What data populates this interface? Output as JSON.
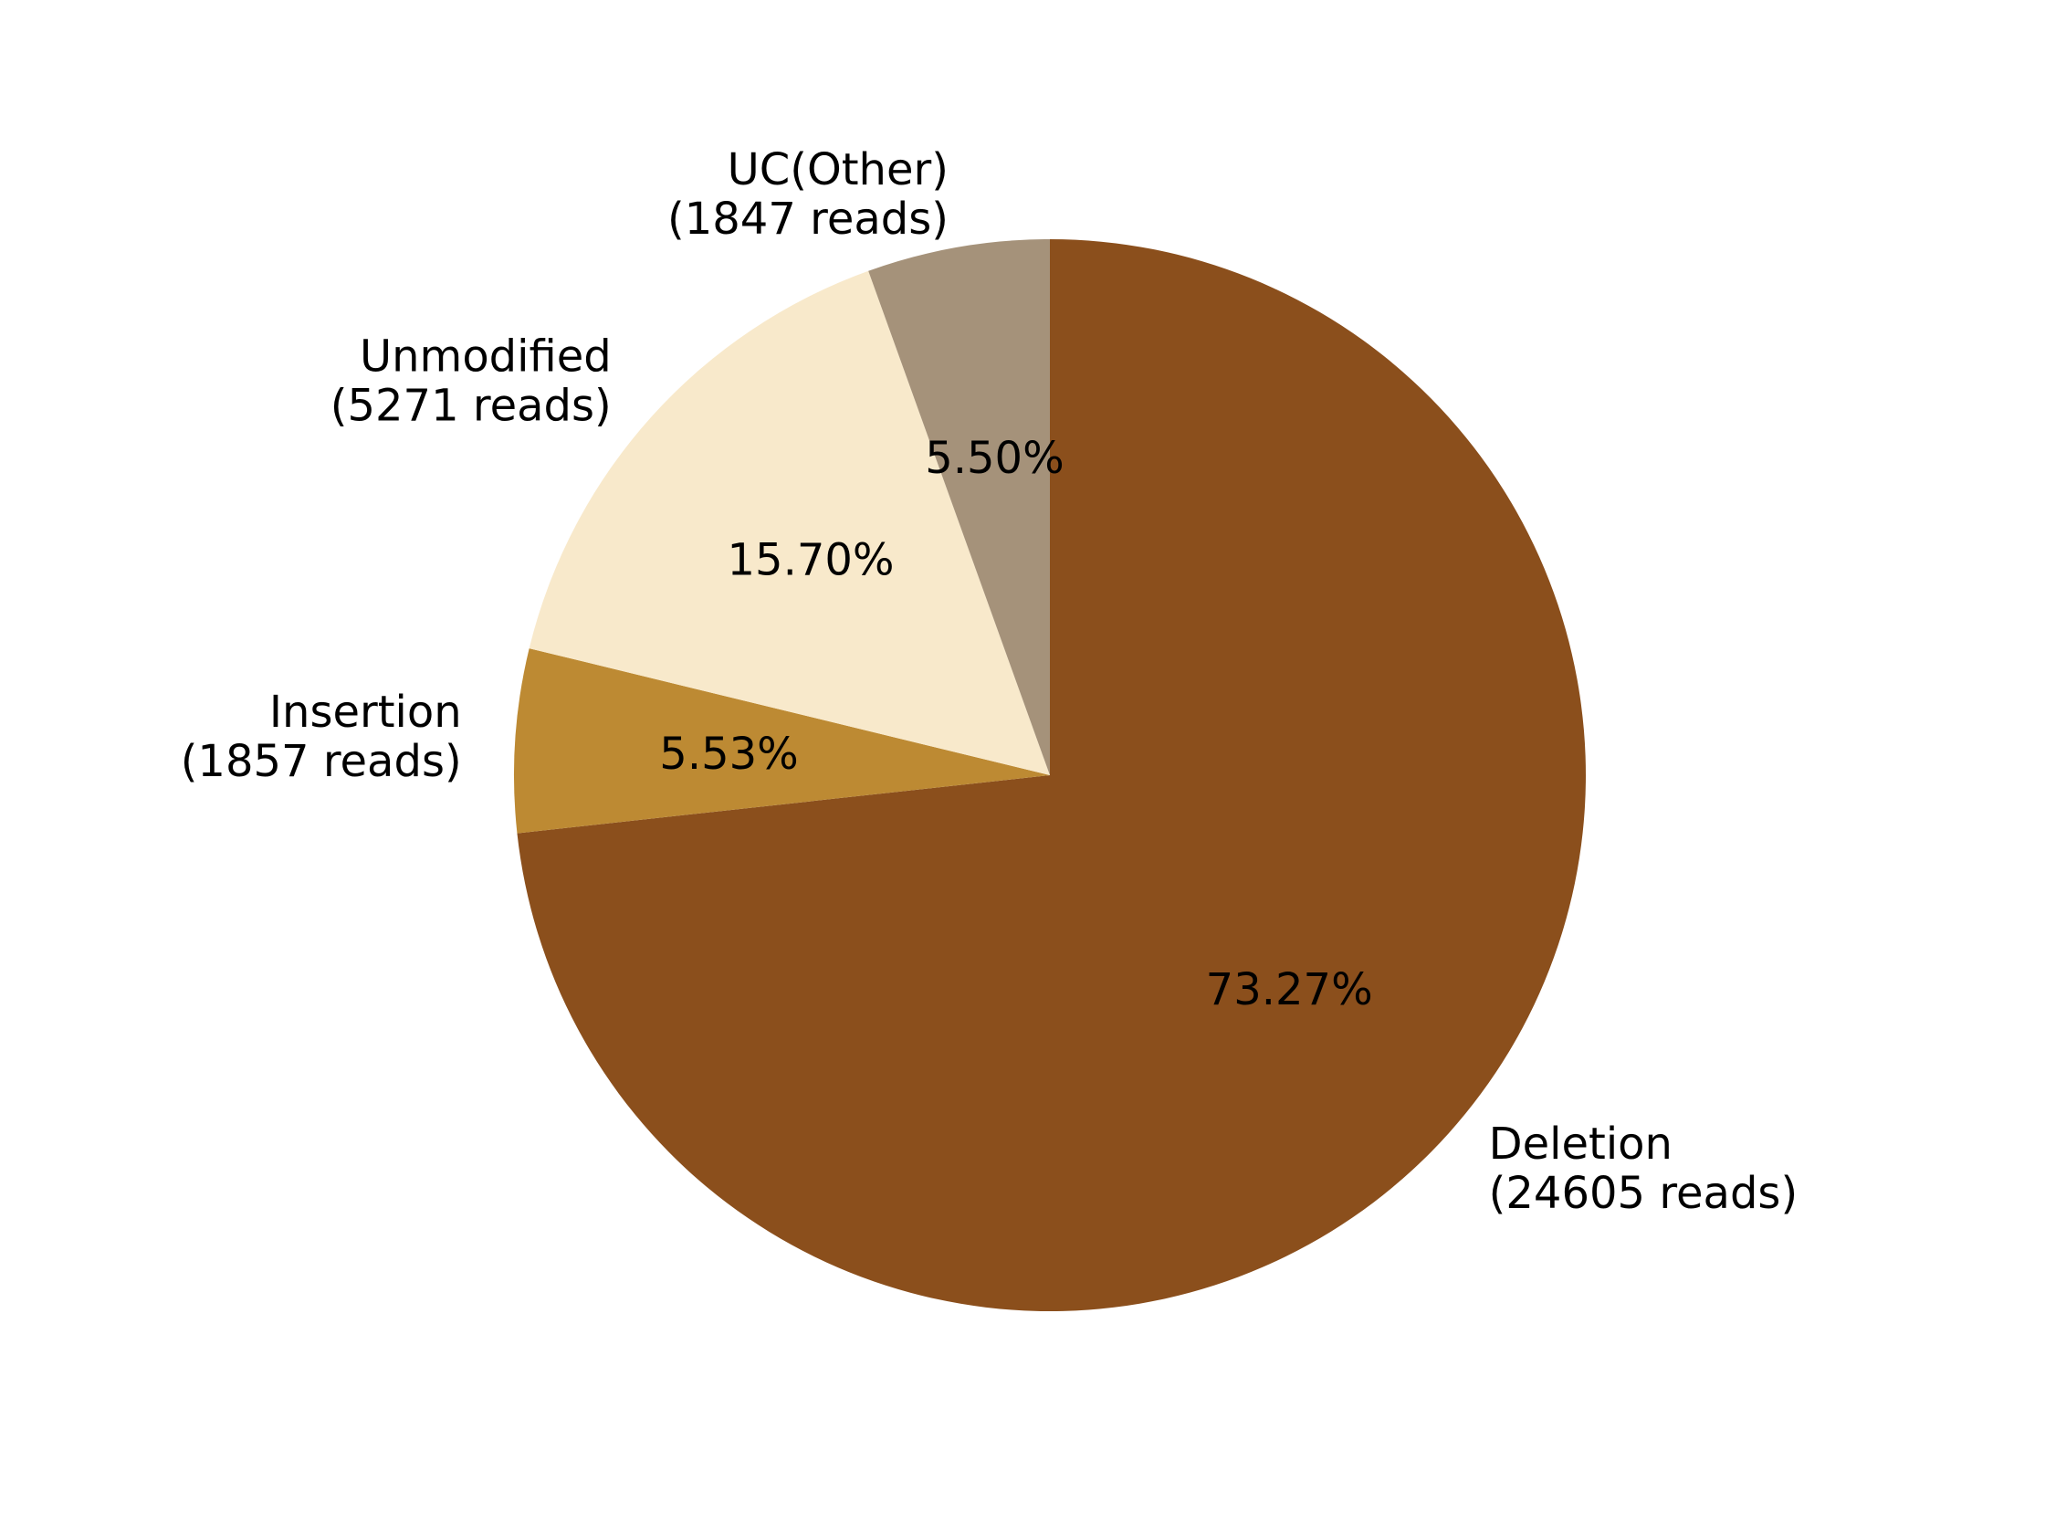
{
  "chart_data": {
    "type": "pie",
    "slices": [
      {
        "label": "Deletion",
        "reads_text": "(24605 reads)",
        "value": 24605,
        "percent_text": "73.27%",
        "color": "#8b4f1c"
      },
      {
        "label": "Insertion",
        "reads_text": "(1857 reads)",
        "value": 1857,
        "percent_text": "5.53%",
        "color": "#bd8a33"
      },
      {
        "label": "Unmodified",
        "reads_text": "(5271 reads)",
        "value": 5271,
        "percent_text": "15.70%",
        "color": "#f8e9cb"
      },
      {
        "label": "UC(Other)",
        "reads_text": "(1847 reads)",
        "value": 1847,
        "percent_text": "5.50%",
        "color": "#a5927a"
      }
    ],
    "start_angle_deg": 90,
    "direction": "clockwise",
    "title": "",
    "legend": "none"
  }
}
